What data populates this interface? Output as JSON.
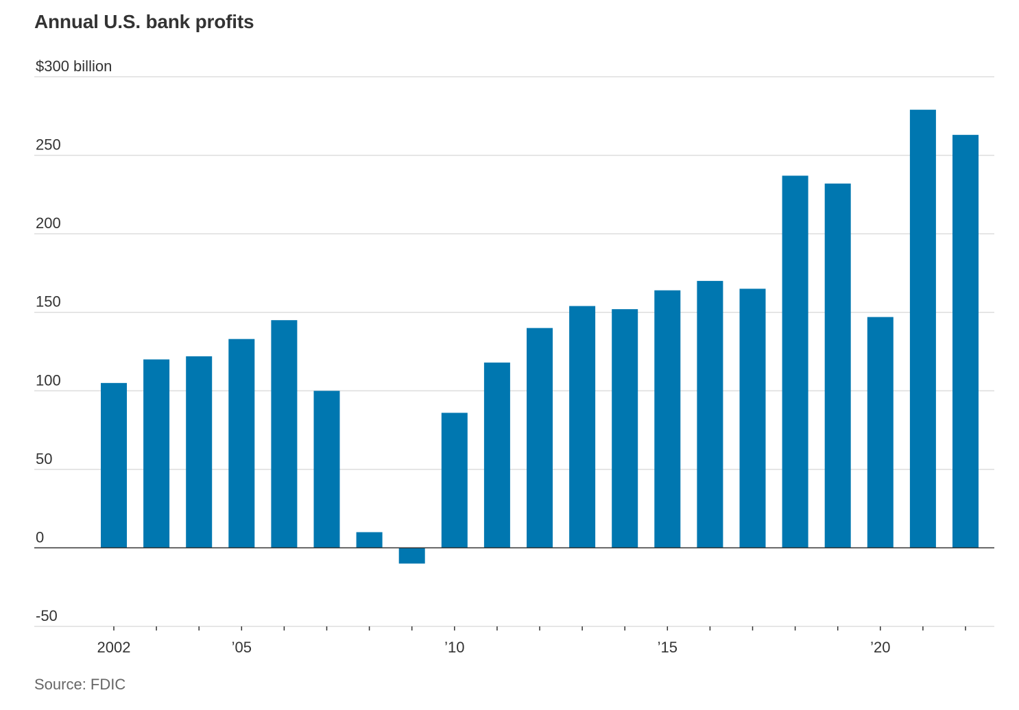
{
  "chart_data": {
    "type": "bar",
    "title": "Annual U.S. bank profits",
    "source": "Source: FDIC",
    "xlabel": "",
    "ylabel": "",
    "x": [
      2002,
      2003,
      2004,
      2005,
      2006,
      2007,
      2008,
      2009,
      2010,
      2011,
      2012,
      2013,
      2014,
      2015,
      2016,
      2017,
      2018,
      2019,
      2020,
      2021,
      2022
    ],
    "values": [
      105,
      120,
      122,
      133,
      145,
      100,
      10,
      -10,
      86,
      118,
      140,
      154,
      152,
      164,
      170,
      165,
      237,
      232,
      147,
      279,
      263
    ],
    "ylim": [
      -50,
      300
    ],
    "y_ticks": [
      {
        "value": 300,
        "label": "$300 billion"
      },
      {
        "value": 250,
        "label": "250"
      },
      {
        "value": 200,
        "label": "200"
      },
      {
        "value": 150,
        "label": "150"
      },
      {
        "value": 100,
        "label": "100"
      },
      {
        "value": 50,
        "label": "50"
      },
      {
        "value": 0,
        "label": "0"
      },
      {
        "value": -50,
        "label": "-50"
      }
    ],
    "x_tick_labels": [
      {
        "year": 2002,
        "label": "2002"
      },
      {
        "year": 2005,
        "label": "’05"
      },
      {
        "year": 2010,
        "label": "’10"
      },
      {
        "year": 2015,
        "label": "’15"
      },
      {
        "year": 2020,
        "label": "’20"
      }
    ],
    "grid": true,
    "legend": "none",
    "colors": {
      "bar": "#0077b0",
      "grid": "#dddddd",
      "zero_line": "#333333",
      "text": "#333333",
      "source": "#666666"
    }
  }
}
